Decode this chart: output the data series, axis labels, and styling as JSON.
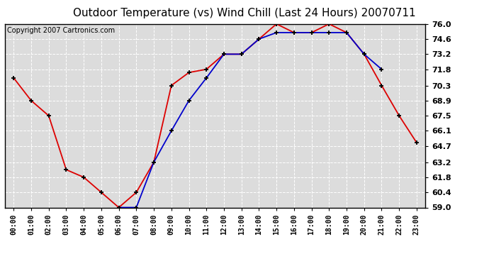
{
  "title": "Outdoor Temperature (vs) Wind Chill (Last 24 Hours) 20070711",
  "copyright": "Copyright 2007 Cartronics.com",
  "x_labels": [
    "00:00",
    "01:00",
    "02:00",
    "03:00",
    "04:00",
    "05:00",
    "06:00",
    "07:00",
    "08:00",
    "09:00",
    "10:00",
    "11:00",
    "12:00",
    "13:00",
    "14:00",
    "15:00",
    "16:00",
    "17:00",
    "18:00",
    "19:00",
    "20:00",
    "21:00",
    "22:00",
    "23:00"
  ],
  "temp_red": [
    71.0,
    68.9,
    67.5,
    62.5,
    61.8,
    60.4,
    59.0,
    60.4,
    63.2,
    70.3,
    71.5,
    71.8,
    73.2,
    73.2,
    74.6,
    76.0,
    75.2,
    75.2,
    76.0,
    75.2,
    73.2,
    70.3,
    67.5,
    65.0
  ],
  "wind_chill_blue": [
    null,
    null,
    null,
    null,
    null,
    null,
    59.0,
    59.0,
    63.2,
    66.1,
    68.9,
    71.0,
    73.2,
    73.2,
    74.6,
    75.2,
    75.2,
    75.2,
    75.2,
    75.2,
    73.2,
    71.8,
    null,
    null
  ],
  "ylim_min": 59.0,
  "ylim_max": 76.0,
  "yticks": [
    59.0,
    60.4,
    61.8,
    63.2,
    64.7,
    66.1,
    67.5,
    68.9,
    70.3,
    71.8,
    73.2,
    74.6,
    76.0
  ],
  "ytick_labels": [
    "59.0",
    "60.4",
    "61.8",
    "63.2",
    "64.7",
    "66.1",
    "67.5",
    "68.9",
    "70.3",
    "71.8",
    "73.2",
    "74.6",
    "76.0"
  ],
  "bg_color": "#ffffff",
  "plot_bg_color": "#dcdcdc",
  "grid_color": "#ffffff",
  "red_color": "#dd0000",
  "blue_color": "#0000cc",
  "title_fontsize": 11,
  "copyright_fontsize": 7,
  "tick_fontsize": 7,
  "ytick_fontsize": 8
}
